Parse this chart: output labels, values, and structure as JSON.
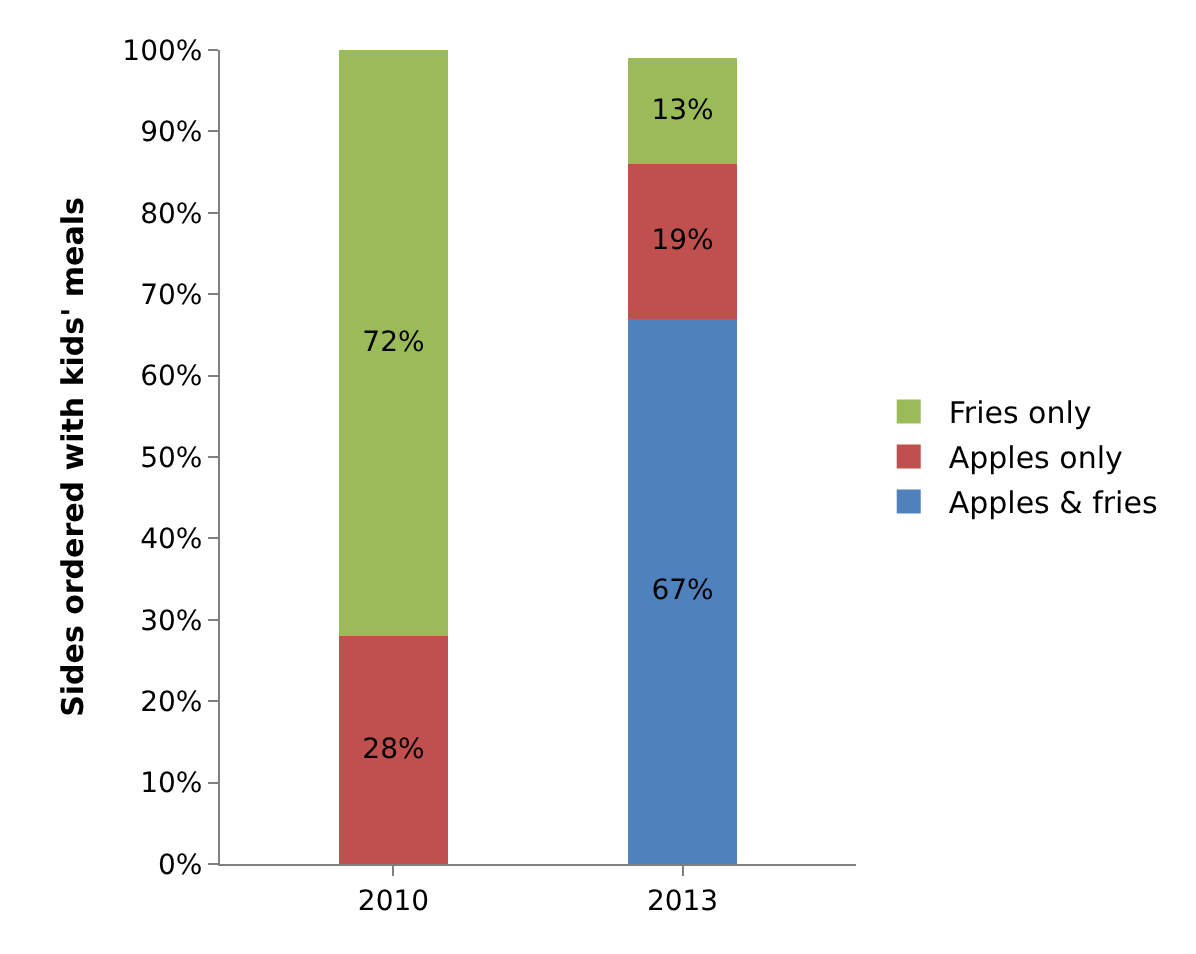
{
  "chart_data": {
    "type": "bar",
    "stacked": true,
    "ylabel": "Sides ordered with kids' meals",
    "categories": [
      "2010",
      "2013"
    ],
    "series": [
      {
        "name": "Apples & fries",
        "color": "#4f81bd",
        "values": [
          null,
          67
        ],
        "value_labels": [
          null,
          "67%"
        ]
      },
      {
        "name": "Apples only",
        "color": "#c0504d",
        "values": [
          28,
          19
        ],
        "value_labels": [
          "28%",
          "19%"
        ]
      },
      {
        "name": "Fries only",
        "color": "#9bbb59",
        "values": [
          72,
          13
        ],
        "value_labels": [
          "72%",
          "13%"
        ]
      }
    ],
    "ylim": [
      0,
      100
    ],
    "yticks": [
      {
        "value": 0,
        "label": "0%"
      },
      {
        "value": 10,
        "label": "10%"
      },
      {
        "value": 20,
        "label": "20%"
      },
      {
        "value": 30,
        "label": "30%"
      },
      {
        "value": 40,
        "label": "40%"
      },
      {
        "value": 50,
        "label": "50%"
      },
      {
        "value": 60,
        "label": "60%"
      },
      {
        "value": 70,
        "label": "70%"
      },
      {
        "value": 80,
        "label": "80%"
      },
      {
        "value": 90,
        "label": "90%"
      },
      {
        "value": 100,
        "label": "100%"
      }
    ],
    "legend": "right"
  }
}
